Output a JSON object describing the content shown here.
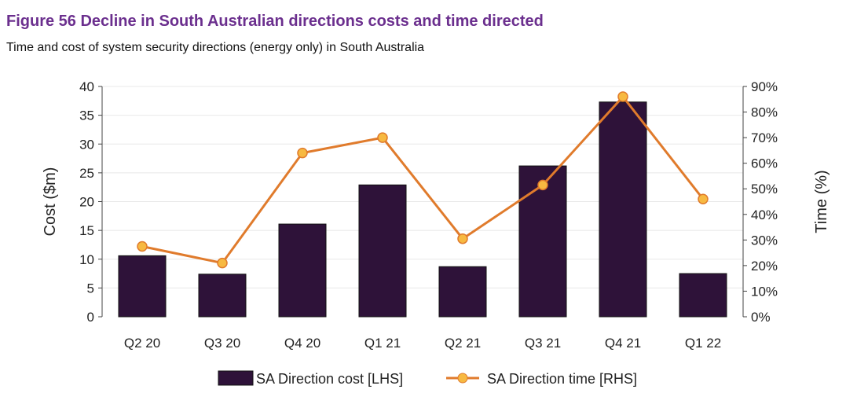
{
  "title": "Figure 56  Decline in South Australian directions costs and time directed",
  "subtitle": "Time and cost of system security directions (energy only) in South Australia",
  "chart_data": {
    "type": "bar+line",
    "categories": [
      "Q2 20",
      "Q3 20",
      "Q4 20",
      "Q1 21",
      "Q2 21",
      "Q3 21",
      "Q4 21",
      "Q1 22"
    ],
    "series": [
      {
        "name": "SA Direction cost [LHS]",
        "type": "bar",
        "axis": "left",
        "values": [
          10.6,
          7.4,
          16.1,
          22.9,
          8.7,
          26.2,
          37.3,
          7.5
        ],
        "color": "#2e1239"
      },
      {
        "name": "SA Direction time [RHS]",
        "type": "line",
        "axis": "right",
        "values": [
          27.5,
          21,
          64,
          70,
          30.5,
          51.5,
          86,
          46
        ],
        "color": "#e07b2c",
        "marker_color": "#f7b941"
      }
    ],
    "ylabel": "Cost ($m)",
    "ylim": [
      0,
      40
    ],
    "yticks": [
      0,
      5,
      10,
      15,
      20,
      25,
      30,
      35,
      40
    ],
    "y2label": "Time (%)",
    "y2lim": [
      0,
      90
    ],
    "y2ticks": [
      "0%",
      "10%",
      "20%",
      "30%",
      "40%",
      "50%",
      "60%",
      "70%",
      "80%",
      "90%"
    ],
    "grid": true,
    "legend": "bottom"
  }
}
